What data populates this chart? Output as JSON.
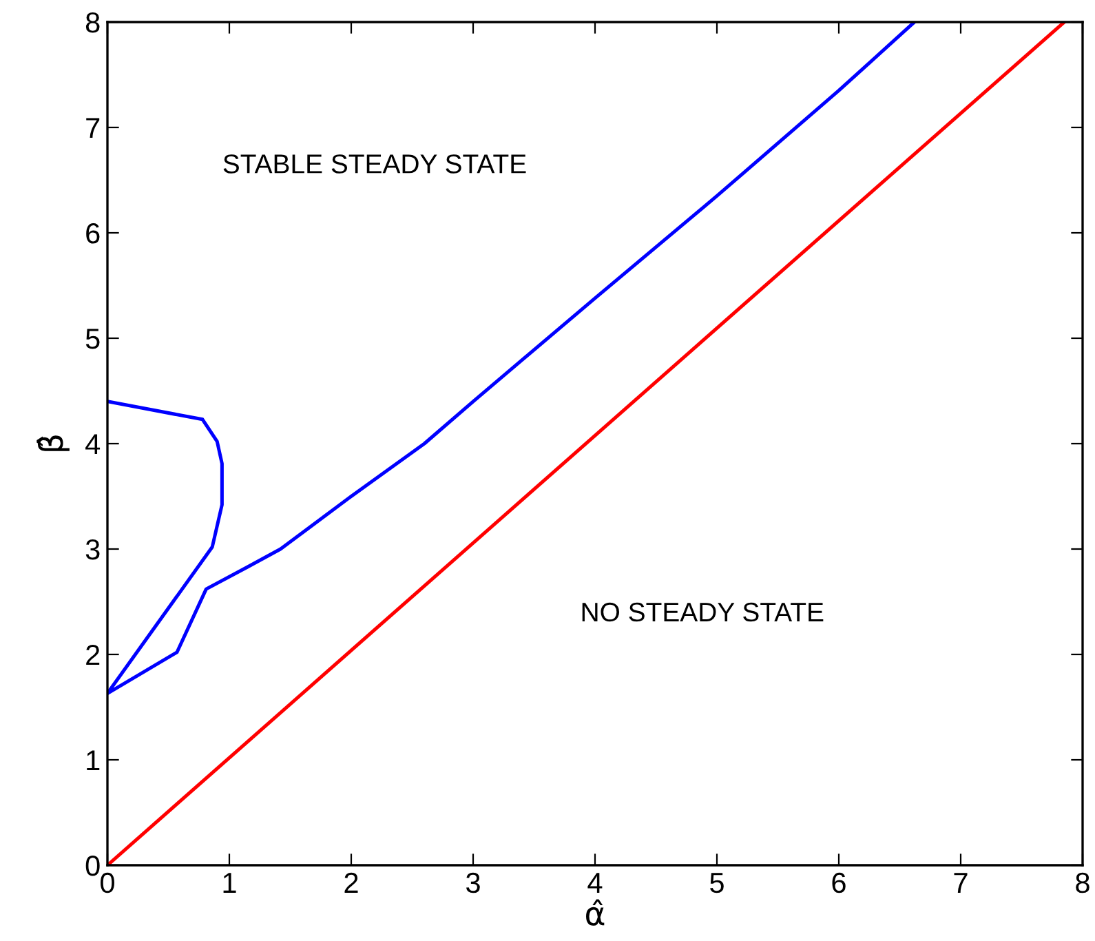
{
  "chart_data": {
    "type": "line",
    "xlabel": "α̂",
    "ylabel": "β̂",
    "xlim": [
      0,
      8
    ],
    "ylim": [
      0,
      8
    ],
    "xticks": [
      0,
      1,
      2,
      3,
      4,
      5,
      6,
      7,
      8
    ],
    "yticks": [
      0,
      1,
      2,
      3,
      4,
      5,
      6,
      7,
      8
    ],
    "grid": false,
    "marker": "none",
    "line_style": "solid",
    "series": [
      {
        "color": "#0000ff",
        "x": [
          0,
          0.78,
          0.9,
          0.94,
          0.94,
          0.86,
          0,
          0.57,
          0.81,
          1.15,
          1.42,
          2.0,
          2.6,
          3.0,
          4.0,
          5.0,
          6.0,
          6.62
        ],
        "values": [
          4.4,
          4.23,
          4.02,
          3.81,
          3.42,
          3.02,
          1.63,
          2.02,
          2.62,
          2.83,
          3.0,
          3.5,
          4.0,
          4.4,
          5.38,
          6.35,
          7.35,
          8.0
        ]
      },
      {
        "color": "#ff0000",
        "x": [
          0,
          7.85
        ],
        "values": [
          0,
          8
        ]
      }
    ],
    "annotations": [
      "STABLE STEADY STATE",
      "NO STEADY STATE"
    ]
  }
}
